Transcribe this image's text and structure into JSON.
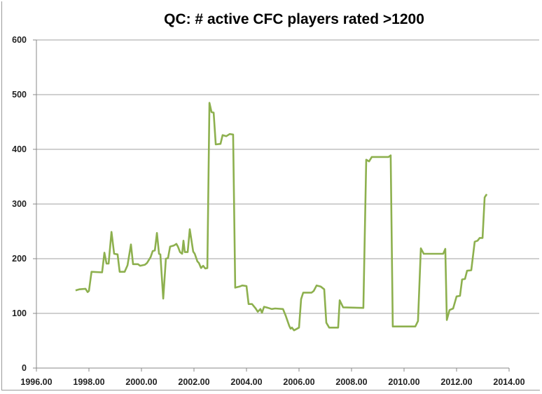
{
  "chart_data": {
    "type": "line",
    "title": "QC:  # active CFC players rated >1200",
    "xlabel": "",
    "ylabel": "",
    "xlim": [
      1996,
      2014
    ],
    "ylim": [
      0,
      600
    ],
    "x_ticks": [
      "1996.00",
      "1998.00",
      "2000.00",
      "2002.00",
      "2004.00",
      "2006.00",
      "2008.00",
      "2010.00",
      "2012.00",
      "2014.00"
    ],
    "x_tick_values": [
      1996,
      1998,
      2000,
      2002,
      2004,
      2006,
      2008,
      2010,
      2012,
      2014
    ],
    "y_ticks": [
      "0",
      "100",
      "200",
      "300",
      "400",
      "500",
      "600"
    ],
    "y_tick_values": [
      0,
      100,
      200,
      300,
      400,
      500,
      600
    ],
    "grid": "horizontal",
    "legend": "none",
    "series": [
      {
        "name": "QC",
        "color": "#8db04e",
        "points": [
          [
            1997.49,
            142
          ],
          [
            1997.63,
            144
          ],
          [
            1997.87,
            145
          ],
          [
            1997.95,
            139
          ],
          [
            1998.0,
            141
          ],
          [
            1998.1,
            176
          ],
          [
            1998.5,
            175
          ],
          [
            1998.59,
            211
          ],
          [
            1998.67,
            191
          ],
          [
            1998.75,
            191
          ],
          [
            1998.86,
            249
          ],
          [
            1998.96,
            209
          ],
          [
            1999.09,
            208
          ],
          [
            1999.17,
            176
          ],
          [
            1999.36,
            176
          ],
          [
            1999.47,
            188
          ],
          [
            1999.6,
            226
          ],
          [
            1999.68,
            190
          ],
          [
            1999.87,
            190
          ],
          [
            1999.95,
            187
          ],
          [
            2000.13,
            189
          ],
          [
            2000.21,
            192
          ],
          [
            2000.35,
            203
          ],
          [
            2000.43,
            214
          ],
          [
            2000.51,
            215
          ],
          [
            2000.59,
            247
          ],
          [
            2000.67,
            209
          ],
          [
            2000.72,
            208
          ],
          [
            2000.83,
            127
          ],
          [
            2000.93,
            200
          ],
          [
            2001.01,
            201
          ],
          [
            2001.09,
            222
          ],
          [
            2001.23,
            224
          ],
          [
            2001.33,
            227
          ],
          [
            2001.39,
            222
          ],
          [
            2001.47,
            212
          ],
          [
            2001.55,
            209
          ],
          [
            2001.6,
            233
          ],
          [
            2001.65,
            212
          ],
          [
            2001.76,
            212
          ],
          [
            2001.84,
            254
          ],
          [
            2001.97,
            213
          ],
          [
            2002.03,
            209
          ],
          [
            2002.13,
            195
          ],
          [
            2002.19,
            192
          ],
          [
            2002.27,
            183
          ],
          [
            2002.35,
            187
          ],
          [
            2002.43,
            182
          ],
          [
            2002.51,
            183
          ],
          [
            2002.59,
            485
          ],
          [
            2002.67,
            468
          ],
          [
            2002.75,
            467
          ],
          [
            2002.83,
            409
          ],
          [
            2003.01,
            410
          ],
          [
            2003.09,
            426
          ],
          [
            2003.23,
            424
          ],
          [
            2003.36,
            428
          ],
          [
            2003.49,
            427
          ],
          [
            2003.57,
            147
          ],
          [
            2003.73,
            149
          ],
          [
            2003.84,
            151
          ],
          [
            2004.0,
            150
          ],
          [
            2004.08,
            117
          ],
          [
            2004.21,
            117
          ],
          [
            2004.35,
            109
          ],
          [
            2004.43,
            103
          ],
          [
            2004.53,
            108
          ],
          [
            2004.59,
            101
          ],
          [
            2004.67,
            112
          ],
          [
            2004.83,
            110
          ],
          [
            2004.96,
            108
          ],
          [
            2005.09,
            109
          ],
          [
            2005.39,
            108
          ],
          [
            2005.49,
            96
          ],
          [
            2005.63,
            77
          ],
          [
            2005.68,
            72
          ],
          [
            2005.73,
            74
          ],
          [
            2005.81,
            69
          ],
          [
            2006.0,
            74
          ],
          [
            2006.08,
            126
          ],
          [
            2006.16,
            138
          ],
          [
            2006.48,
            138
          ],
          [
            2006.56,
            141
          ],
          [
            2006.67,
            151
          ],
          [
            2006.83,
            149
          ],
          [
            2006.96,
            144
          ],
          [
            2007.04,
            83
          ],
          [
            2007.15,
            74
          ],
          [
            2007.49,
            74
          ],
          [
            2007.55,
            124
          ],
          [
            2007.68,
            111
          ],
          [
            2008.45,
            110
          ],
          [
            2008.56,
            381
          ],
          [
            2008.67,
            378
          ],
          [
            2008.77,
            386
          ],
          [
            2009.41,
            386
          ],
          [
            2009.49,
            389
          ],
          [
            2009.57,
            76
          ],
          [
            2009.73,
            76
          ],
          [
            2010.43,
            76
          ],
          [
            2010.53,
            86
          ],
          [
            2010.64,
            219
          ],
          [
            2010.75,
            209
          ],
          [
            2011.49,
            209
          ],
          [
            2011.57,
            218
          ],
          [
            2011.63,
            88
          ],
          [
            2011.73,
            106
          ],
          [
            2011.87,
            109
          ],
          [
            2012.0,
            131
          ],
          [
            2012.13,
            132
          ],
          [
            2012.21,
            162
          ],
          [
            2012.32,
            163
          ],
          [
            2012.4,
            178
          ],
          [
            2012.56,
            179
          ],
          [
            2012.69,
            231
          ],
          [
            2012.8,
            233
          ],
          [
            2012.88,
            238
          ],
          [
            2012.99,
            238
          ],
          [
            2013.07,
            312
          ],
          [
            2013.15,
            318
          ]
        ]
      }
    ]
  }
}
